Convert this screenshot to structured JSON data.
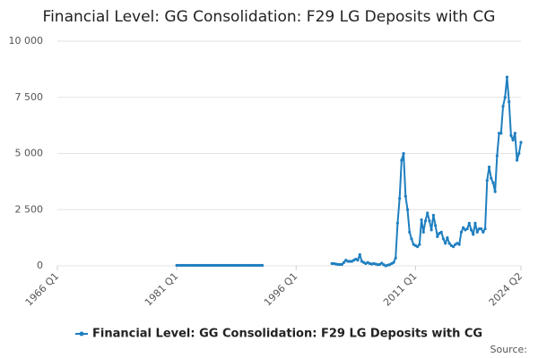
{
  "chart_data": {
    "type": "line",
    "title": "Financial Level: GG Consolidation: F29 LG Deposits with CG",
    "source": "Source:",
    "xlim": [
      1966,
      2024.25
    ],
    "xticks": [
      {
        "value": 1966,
        "label": "1966 Q1"
      },
      {
        "value": 1981,
        "label": "1981 Q1"
      },
      {
        "value": 1996,
        "label": "1996 Q1"
      },
      {
        "value": 2011,
        "label": "2011 Q1"
      },
      {
        "value": 2024.25,
        "label": "2024 Q2"
      }
    ],
    "ylim": [
      0,
      10000
    ],
    "yticks": [
      0,
      {
        "value": 2500,
        "label": "2 500"
      },
      {
        "value": 5000,
        "label": "5 000"
      },
      {
        "value": 7500,
        "label": "7 500"
      },
      {
        "value": 10000,
        "label": "10 000"
      }
    ],
    "grid": true,
    "legend": "bottom",
    "x": [
      1981,
      1981.25,
      1981.5,
      1981.75,
      1982,
      1982.25,
      1982.5,
      1982.75,
      1983,
      1983.25,
      1983.5,
      1983.75,
      1984,
      1984.25,
      1984.5,
      1984.75,
      1985,
      1985.25,
      1985.5,
      1985.75,
      1986,
      1986.25,
      1986.5,
      1986.75,
      1987,
      1987.25,
      1987.5,
      1987.75,
      1988,
      1988.25,
      1988.5,
      1988.75,
      1989,
      1989.25,
      1989.5,
      1989.75,
      1990,
      1990.25,
      1990.5,
      1990.75,
      1991,
      1991.25,
      1991.5,
      1991.75,
      1992,
      2000.5,
      2000.75,
      2001,
      2001.25,
      2001.5,
      2001.75,
      2002,
      2002.25,
      2002.5,
      2002.75,
      2003,
      2003.25,
      2003.5,
      2003.75,
      2004,
      2004.25,
      2004.5,
      2004.75,
      2005,
      2005.25,
      2005.5,
      2005.75,
      2006,
      2006.25,
      2006.5,
      2006.75,
      2007,
      2007.25,
      2007.5,
      2007.75,
      2008,
      2008.25,
      2008.5,
      2008.75,
      2009,
      2009.25,
      2009.5,
      2009.75,
      2010,
      2010.25,
      2010.5,
      2010.75,
      2011,
      2011.25,
      2011.5,
      2011.75,
      2012,
      2012.25,
      2012.5,
      2012.75,
      2013,
      2013.25,
      2013.5,
      2013.75,
      2014,
      2014.25,
      2014.5,
      2014.75,
      2015,
      2015.25,
      2015.5,
      2015.75,
      2016,
      2016.25,
      2016.5,
      2016.75,
      2017,
      2017.25,
      2017.5,
      2017.75,
      2018,
      2018.25,
      2018.5,
      2018.75,
      2019,
      2019.25,
      2019.5,
      2019.75,
      2020,
      2020.25,
      2020.5,
      2020.75,
      2021,
      2021.25,
      2021.5,
      2021.75,
      2022,
      2022.25,
      2022.5,
      2022.75,
      2023,
      2023.25,
      2023.5,
      2023.75,
      2024,
      2024.25
    ],
    "series": [
      {
        "name": "Financial Level: GG Consolidation: F29 LG Deposits with CG",
        "color": "#1f7fc0",
        "values": [
          20,
          20,
          20,
          20,
          20,
          20,
          20,
          20,
          20,
          20,
          20,
          20,
          20,
          20,
          20,
          20,
          20,
          20,
          20,
          20,
          20,
          20,
          20,
          20,
          20,
          20,
          20,
          20,
          20,
          20,
          20,
          20,
          20,
          20,
          20,
          20,
          20,
          20,
          20,
          20,
          20,
          20,
          20,
          20,
          null,
          100,
          100,
          80,
          60,
          60,
          60,
          150,
          250,
          200,
          200,
          200,
          250,
          300,
          250,
          500,
          200,
          150,
          100,
          150,
          100,
          80,
          100,
          80,
          50,
          60,
          120,
          50,
          0,
          30,
          50,
          100,
          150,
          350,
          1900,
          3000,
          4700,
          5000,
          3100,
          2500,
          1500,
          1200,
          950,
          900,
          850,
          950,
          2050,
          1500,
          2000,
          2350,
          2000,
          1600,
          2250,
          1800,
          1300,
          1450,
          1500,
          1200,
          1000,
          1250,
          1000,
          900,
          850,
          950,
          1000,
          950,
          1500,
          1700,
          1600,
          1650,
          1900,
          1600,
          1400,
          1900,
          1500,
          1650,
          1650,
          1500,
          1650,
          3800,
          4400,
          3900,
          3700,
          3300,
          4900,
          5900,
          5900,
          7100,
          7500,
          8400,
          7300,
          5800,
          5600,
          5900,
          4700,
          5000,
          5500
        ]
      }
    ]
  }
}
